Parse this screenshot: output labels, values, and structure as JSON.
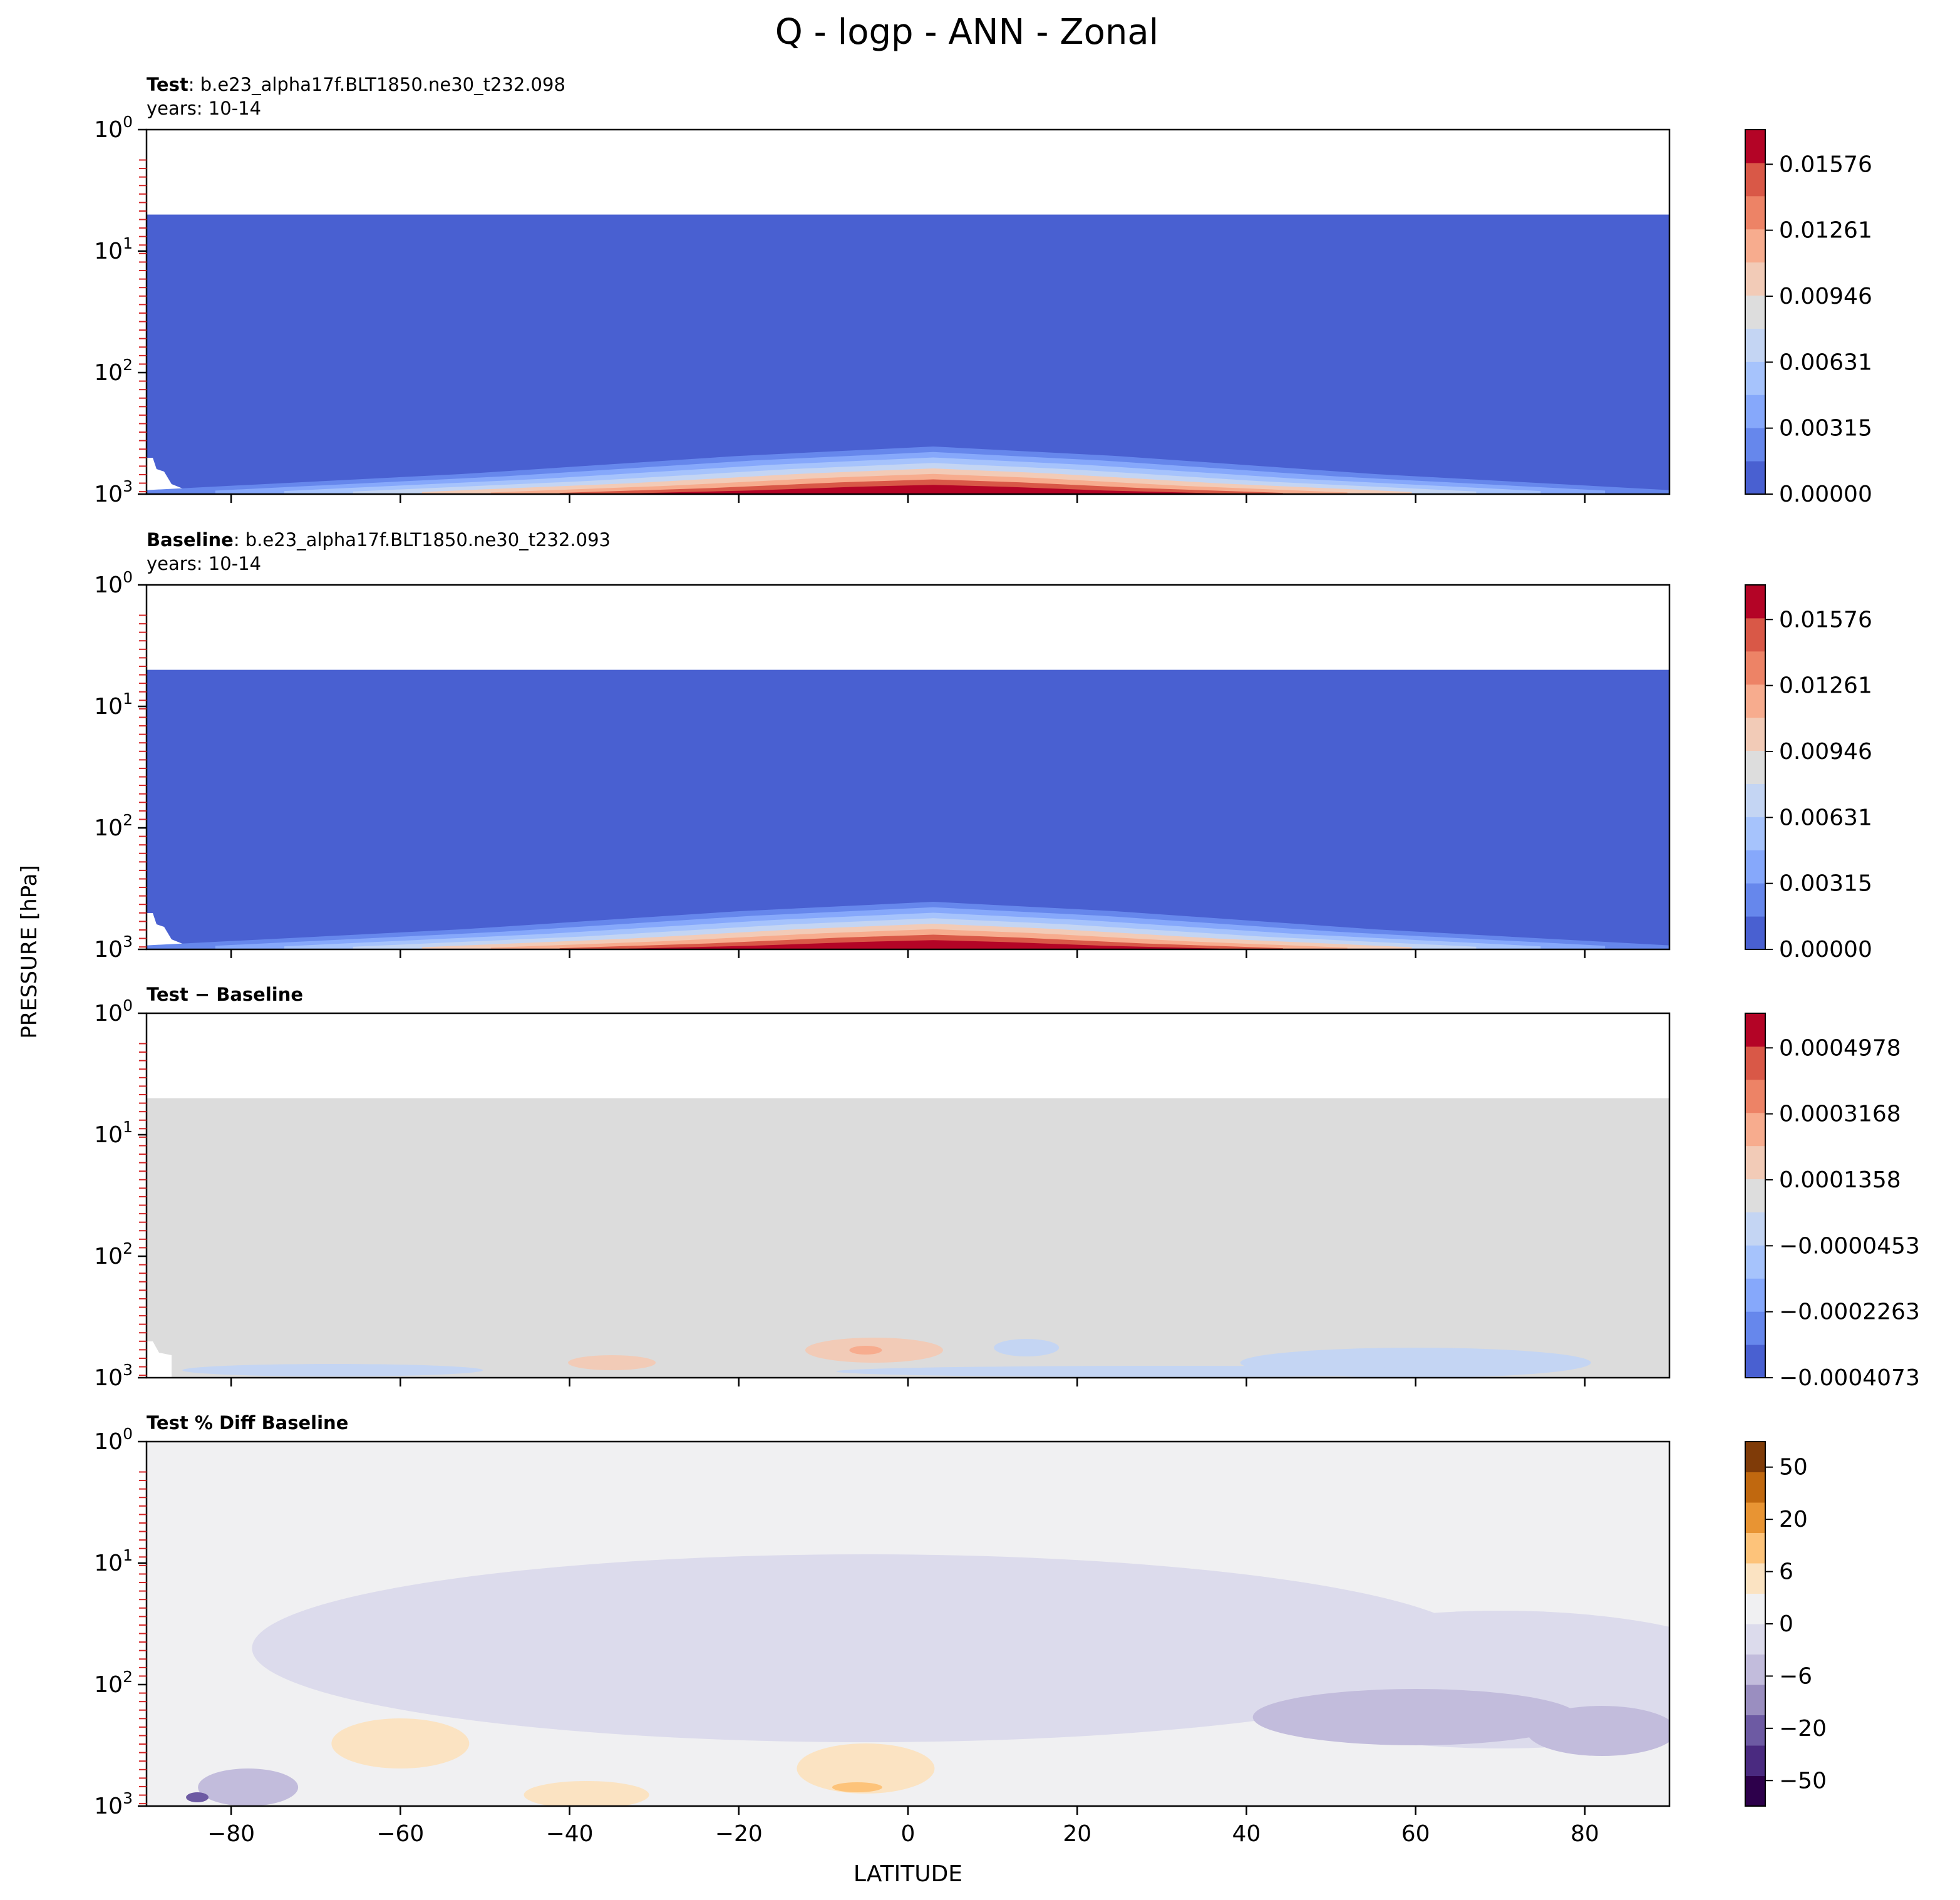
{
  "figure": {
    "title": "Q - logp - ANN - Zonal",
    "ylabel": "PRESSURE [hPa]",
    "xlabel": "LATITUDE"
  },
  "chart_data": [
    {
      "type": "heatmap",
      "label_bold": "Test",
      "label_rest": ": b.e23_alpha17f.BLT1850.ne30_t232.098",
      "years": "years: 10-14",
      "colormap": "coolwarm",
      "colorbar": {
        "ticks": [
          "0.01576",
          "0.01261",
          "0.00946",
          "0.00631",
          "0.00315",
          "0.00000"
        ],
        "colors": [
          "#4960d1",
          "#6687ec",
          "#86a8fb",
          "#a6c3fc",
          "#c4d5f3",
          "#dddddd",
          "#f2cbb7",
          "#f7ac8e",
          "#ed8366",
          "#d95847",
          "#b40426"
        ]
      },
      "fill_color": "#4960d1",
      "top_empty_above_hPa": 5,
      "bottom_band_colors": [
        "#6687ec",
        "#86a8fb",
        "#a6c3fc",
        "#c4d5f3",
        "#f2cbb7",
        "#f7ac8e",
        "#d95847",
        "#b40426"
      ]
    },
    {
      "type": "heatmap",
      "label_bold": "Baseline",
      "label_rest": ": b.e23_alpha17f.BLT1850.ne30_t232.093",
      "years": "years: 10-14",
      "colormap": "coolwarm",
      "colorbar": {
        "ticks": [
          "0.01576",
          "0.01261",
          "0.00946",
          "0.00631",
          "0.00315",
          "0.00000"
        ],
        "colors": [
          "#4960d1",
          "#6687ec",
          "#86a8fb",
          "#a6c3fc",
          "#c4d5f3",
          "#dddddd",
          "#f2cbb7",
          "#f7ac8e",
          "#ed8366",
          "#d95847",
          "#b40426"
        ]
      },
      "fill_color": "#4960d1",
      "top_empty_above_hPa": 5,
      "bottom_band_colors": [
        "#6687ec",
        "#86a8fb",
        "#a6c3fc",
        "#c4d5f3",
        "#f2cbb7",
        "#f7ac8e",
        "#d95847",
        "#b40426"
      ]
    },
    {
      "type": "heatmap",
      "label_bold": "Test − Baseline",
      "label_rest": "",
      "years": "",
      "colormap": "coolwarm",
      "colorbar": {
        "ticks": [
          "0.0004978",
          "0.0003168",
          "0.0001358",
          "−0.0000453",
          "−0.0002263",
          "−0.0004073"
        ],
        "colors": [
          "#4960d1",
          "#6687ec",
          "#86a8fb",
          "#a6c3fc",
          "#c4d5f3",
          "#dddddd",
          "#f2cbb7",
          "#f7ac8e",
          "#ed8366",
          "#d95847",
          "#b40426"
        ]
      },
      "fill_color": "#dcdcdc",
      "top_empty_above_hPa": 5
    },
    {
      "type": "heatmap",
      "label_bold": "Test % Diff Baseline",
      "label_rest": "",
      "years": "",
      "colormap": "PuOr_r",
      "colorbar": {
        "ticks": [
          "50",
          "20",
          "6",
          "0",
          "−6",
          "−20",
          "−50"
        ],
        "colors": [
          "#2d004b",
          "#4a2a80",
          "#6d5aa3",
          "#9a8ec0",
          "#c2bcdc",
          "#dcdbec",
          "#f0f0f2",
          "#fbe3c2",
          "#fdc37a",
          "#e89433",
          "#c0680f",
          "#7f3b08"
        ]
      },
      "fill_color": "#f0f0f2",
      "top_empty_above_hPa": 0
    }
  ],
  "axes": {
    "x_ticks": [
      -80,
      -60,
      -40,
      -20,
      0,
      20,
      40,
      60,
      80
    ],
    "x_tick_labels": [
      "−80",
      "−60",
      "−40",
      "−20",
      "0",
      "20",
      "40",
      "60",
      "80"
    ],
    "xlim": [
      -90,
      90
    ],
    "ylim_hPa": [
      1000,
      1
    ],
    "y_scale": "log",
    "y_tick_labels": [
      {
        "base": "10",
        "exp": "0"
      },
      {
        "base": "10",
        "exp": "1"
      },
      {
        "base": "10",
        "exp": "2"
      },
      {
        "base": "10",
        "exp": "3"
      }
    ],
    "level_marker_color": "#d62728"
  }
}
